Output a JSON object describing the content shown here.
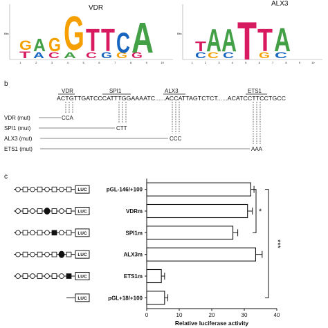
{
  "panel_a": {
    "logo_left": {
      "title": "VDR",
      "y_label": "Bits",
      "x_ticks": [
        "1",
        "2",
        "3",
        "4",
        "5",
        "6",
        "7",
        "8",
        "9",
        "10"
      ]
    },
    "logo_right": {
      "title": "ALX3",
      "y_label": "Bits",
      "x_ticks": [
        "1",
        "2",
        "3",
        "4",
        "5",
        "6",
        "7",
        "8",
        "9",
        "10"
      ]
    }
  },
  "panel_b": {
    "label": "b",
    "sequence": "ACTGTTGATCCCATTTGGAAAATC......ACCATTAGTCTCT......ACATCCTTCCTGCC",
    "sites": [
      {
        "name": "VDR"
      },
      {
        "name": "SPI1"
      },
      {
        "name": "ALX3"
      },
      {
        "name": "ETS1"
      }
    ],
    "mutants": [
      {
        "label": "VDR (mut)",
        "seq": "CCA"
      },
      {
        "label": "SPI1 (mut)",
        "seq": "CTT"
      },
      {
        "label": "ALX3 (mut)",
        "seq": "CCC"
      },
      {
        "label": "ETS1 (mut)",
        "seq": "AAA"
      }
    ]
  },
  "panel_c": {
    "label": "c",
    "luc_label": "LUC",
    "constructs": [
      {
        "name": "pGL-146/+100",
        "mutated": "none"
      },
      {
        "name": "VDRm",
        "mutated": "circle-3"
      },
      {
        "name": "SPI1m",
        "mutated": "square-3"
      },
      {
        "name": "ALX3m",
        "mutated": "circle-4"
      },
      {
        "name": "ETS1m",
        "mutated": "square-4"
      },
      {
        "name": "pGL+18/+100",
        "mutated": "short"
      }
    ],
    "significance": [
      "*",
      "***"
    ]
  },
  "chart_data": {
    "type": "bar",
    "orientation": "horizontal",
    "categories": [
      "pGL-146/+100",
      "VDRm",
      "SPI1m",
      "ALX3m",
      "ETS1m",
      "pGL+18/+100"
    ],
    "values": [
      32,
      31,
      26.5,
      33.5,
      4.5,
      5.5
    ],
    "errors": [
      1.0,
      1.5,
      1.5,
      2.0,
      1.0,
      1.0
    ],
    "xlabel": "Relative luciferase activity",
    "xlim": [
      0,
      40
    ],
    "xticks": [
      "0",
      "10",
      "20",
      "30",
      "40"
    ]
  }
}
